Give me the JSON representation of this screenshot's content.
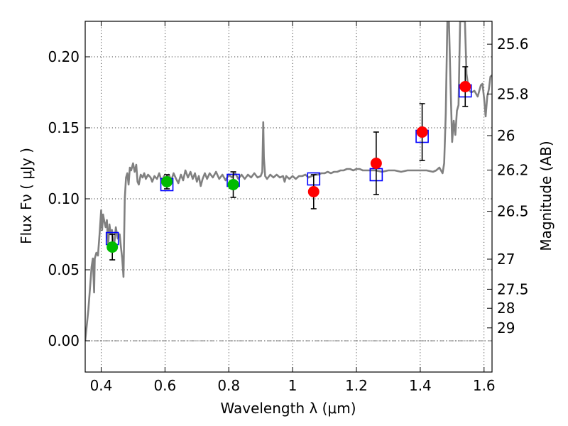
{
  "chart_data": {
    "type": "scatter",
    "xlabel": "Wavelength  λ (μm)",
    "ylabel": "Flux  Fν  ( μJy )",
    "ylabel_right": "Magnitude (AB)",
    "xlim": [
      0.35,
      1.625
    ],
    "ylim": [
      -0.022,
      0.225
    ],
    "x_ticks": [
      {
        "value": 0.4,
        "label": "0.4"
      },
      {
        "value": 0.6,
        "label": "0.6"
      },
      {
        "value": 0.8,
        "label": "0.8"
      },
      {
        "value": 1.0,
        "label": "1"
      },
      {
        "value": 1.2,
        "label": "1.2"
      },
      {
        "value": 1.4,
        "label": "1.4"
      },
      {
        "value": 1.6,
        "label": "1.6"
      }
    ],
    "y_ticks": [
      {
        "value": 0.0,
        "label": "0.00"
      },
      {
        "value": 0.05,
        "label": "0.05"
      },
      {
        "value": 0.1,
        "label": "0.10"
      },
      {
        "value": 0.15,
        "label": "0.15"
      },
      {
        "value": 0.2,
        "label": "0.20"
      }
    ],
    "mag_ticks": [
      {
        "label": "25.6",
        "flux": 0.2089
      },
      {
        "label": "25.8",
        "flux": 0.1738
      },
      {
        "label": "26",
        "flux": 0.1445
      },
      {
        "label": "26.2",
        "flux": 0.1202
      },
      {
        "label": "26.5",
        "flux": 0.0912
      },
      {
        "label": "27",
        "flux": 0.0575
      },
      {
        "label": "27.5",
        "flux": 0.0363
      },
      {
        "label": "28",
        "flux": 0.0229
      },
      {
        "label": "29",
        "flux": 0.0091
      }
    ],
    "grid": true,
    "colors": {
      "spectrum": "#808080",
      "model": "#0000ff",
      "optical": "#00bb00",
      "nir": "#ff0000",
      "error": "#000000"
    },
    "model_points": [
      {
        "x": 0.435,
        "y": 0.072
      },
      {
        "x": 0.606,
        "y": 0.11
      },
      {
        "x": 0.814,
        "y": 0.113
      },
      {
        "x": 1.066,
        "y": 0.114
      },
      {
        "x": 1.262,
        "y": 0.117
      },
      {
        "x": 1.406,
        "y": 0.144
      },
      {
        "x": 1.541,
        "y": 0.176
      }
    ],
    "observed_optical": [
      {
        "x": 0.435,
        "y": 0.066,
        "err": 0.009
      },
      {
        "x": 0.606,
        "y": 0.112,
        "err": 0.005
      },
      {
        "x": 0.814,
        "y": 0.11,
        "err": 0.009
      }
    ],
    "observed_nir": [
      {
        "x": 1.066,
        "y": 0.105,
        "err": 0.012
      },
      {
        "x": 1.262,
        "y": 0.125,
        "err": 0.022
      },
      {
        "x": 1.406,
        "y": 0.147,
        "err": 0.02
      },
      {
        "x": 1.541,
        "y": 0.179,
        "err": 0.014
      }
    ],
    "spectrum": [
      [
        0.35,
        0.0
      ],
      [
        0.36,
        0.022
      ],
      [
        0.37,
        0.052
      ],
      [
        0.374,
        0.058
      ],
      [
        0.378,
        0.034
      ],
      [
        0.38,
        0.058
      ],
      [
        0.385,
        0.062
      ],
      [
        0.39,
        0.06
      ],
      [
        0.395,
        0.075
      ],
      [
        0.4,
        0.092
      ],
      [
        0.403,
        0.078
      ],
      [
        0.406,
        0.089
      ],
      [
        0.41,
        0.084
      ],
      [
        0.414,
        0.08
      ],
      [
        0.418,
        0.085
      ],
      [
        0.422,
        0.067
      ],
      [
        0.426,
        0.082
      ],
      [
        0.43,
        0.075
      ],
      [
        0.434,
        0.078
      ],
      [
        0.438,
        0.068
      ],
      [
        0.442,
        0.07
      ],
      [
        0.446,
        0.08
      ],
      [
        0.452,
        0.072
      ],
      [
        0.458,
        0.075
      ],
      [
        0.462,
        0.066
      ],
      [
        0.466,
        0.058
      ],
      [
        0.47,
        0.045
      ],
      [
        0.474,
        0.1
      ],
      [
        0.478,
        0.115
      ],
      [
        0.482,
        0.118
      ],
      [
        0.486,
        0.11
      ],
      [
        0.49,
        0.122
      ],
      [
        0.494,
        0.12
      ],
      [
        0.5,
        0.125
      ],
      [
        0.505,
        0.119
      ],
      [
        0.51,
        0.124
      ],
      [
        0.514,
        0.112
      ],
      [
        0.518,
        0.11
      ],
      [
        0.524,
        0.117
      ],
      [
        0.53,
        0.115
      ],
      [
        0.535,
        0.118
      ],
      [
        0.54,
        0.114
      ],
      [
        0.547,
        0.117
      ],
      [
        0.555,
        0.115
      ],
      [
        0.56,
        0.112
      ],
      [
        0.567,
        0.116
      ],
      [
        0.575,
        0.114
      ],
      [
        0.582,
        0.118
      ],
      [
        0.59,
        0.112
      ],
      [
        0.597,
        0.116
      ],
      [
        0.605,
        0.11
      ],
      [
        0.612,
        0.117
      ],
      [
        0.62,
        0.113
      ],
      [
        0.627,
        0.118
      ],
      [
        0.635,
        0.114
      ],
      [
        0.642,
        0.111
      ],
      [
        0.65,
        0.117
      ],
      [
        0.657,
        0.113
      ],
      [
        0.664,
        0.12
      ],
      [
        0.672,
        0.115
      ],
      [
        0.68,
        0.119
      ],
      [
        0.687,
        0.114
      ],
      [
        0.694,
        0.118
      ],
      [
        0.7,
        0.112
      ],
      [
        0.706,
        0.116
      ],
      [
        0.712,
        0.109
      ],
      [
        0.718,
        0.114
      ],
      [
        0.725,
        0.118
      ],
      [
        0.732,
        0.114
      ],
      [
        0.74,
        0.118
      ],
      [
        0.75,
        0.115
      ],
      [
        0.76,
        0.119
      ],
      [
        0.77,
        0.114
      ],
      [
        0.78,
        0.117
      ],
      [
        0.79,
        0.113
      ],
      [
        0.8,
        0.117
      ],
      [
        0.81,
        0.115
      ],
      [
        0.82,
        0.118
      ],
      [
        0.83,
        0.114
      ],
      [
        0.84,
        0.117
      ],
      [
        0.85,
        0.114
      ],
      [
        0.86,
        0.117
      ],
      [
        0.87,
        0.115
      ],
      [
        0.88,
        0.118
      ],
      [
        0.89,
        0.115
      ],
      [
        0.9,
        0.116
      ],
      [
        0.905,
        0.119
      ],
      [
        0.908,
        0.154
      ],
      [
        0.91,
        0.129
      ],
      [
        0.914,
        0.116
      ],
      [
        0.92,
        0.114
      ],
      [
        0.93,
        0.117
      ],
      [
        0.94,
        0.115
      ],
      [
        0.95,
        0.117
      ],
      [
        0.96,
        0.115
      ],
      [
        0.97,
        0.116
      ],
      [
        0.975,
        0.112
      ],
      [
        0.98,
        0.116
      ],
      [
        0.99,
        0.114
      ],
      [
        1.0,
        0.116
      ],
      [
        1.01,
        0.114
      ],
      [
        1.02,
        0.116
      ],
      [
        1.03,
        0.116
      ],
      [
        1.04,
        0.117
      ],
      [
        1.05,
        0.115
      ],
      [
        1.06,
        0.116
      ],
      [
        1.07,
        0.117
      ],
      [
        1.08,
        0.117
      ],
      [
        1.09,
        0.118
      ],
      [
        1.1,
        0.118
      ],
      [
        1.11,
        0.119
      ],
      [
        1.12,
        0.118
      ],
      [
        1.13,
        0.119
      ],
      [
        1.14,
        0.119
      ],
      [
        1.15,
        0.12
      ],
      [
        1.16,
        0.12
      ],
      [
        1.17,
        0.121
      ],
      [
        1.18,
        0.121
      ],
      [
        1.19,
        0.12
      ],
      [
        1.2,
        0.121
      ],
      [
        1.21,
        0.121
      ],
      [
        1.22,
        0.12
      ],
      [
        1.24,
        0.12
      ],
      [
        1.26,
        0.12
      ],
      [
        1.28,
        0.119
      ],
      [
        1.3,
        0.12
      ],
      [
        1.32,
        0.12
      ],
      [
        1.34,
        0.119
      ],
      [
        1.36,
        0.12
      ],
      [
        1.38,
        0.12
      ],
      [
        1.4,
        0.12
      ],
      [
        1.42,
        0.12
      ],
      [
        1.44,
        0.119
      ],
      [
        1.45,
        0.12
      ],
      [
        1.46,
        0.122
      ],
      [
        1.47,
        0.118
      ],
      [
        1.475,
        0.125
      ],
      [
        1.48,
        0.16
      ],
      [
        1.485,
        0.225
      ],
      [
        1.49,
        0.225
      ],
      [
        1.495,
        0.18
      ],
      [
        1.5,
        0.14
      ],
      [
        1.505,
        0.155
      ],
      [
        1.51,
        0.145
      ],
      [
        1.515,
        0.162
      ],
      [
        1.52,
        0.166
      ],
      [
        1.525,
        0.225
      ],
      [
        1.53,
        0.225
      ],
      [
        1.535,
        0.225
      ],
      [
        1.54,
        0.225
      ],
      [
        1.545,
        0.188
      ],
      [
        1.55,
        0.18
      ],
      [
        1.555,
        0.176
      ],
      [
        1.56,
        0.175
      ],
      [
        1.57,
        0.176
      ],
      [
        1.58,
        0.172
      ],
      [
        1.59,
        0.18
      ],
      [
        1.595,
        0.181
      ],
      [
        1.6,
        0.171
      ],
      [
        1.605,
        0.158
      ],
      [
        1.61,
        0.172
      ],
      [
        1.615,
        0.177
      ],
      [
        1.62,
        0.186
      ],
      [
        1.625,
        0.187
      ]
    ]
  }
}
